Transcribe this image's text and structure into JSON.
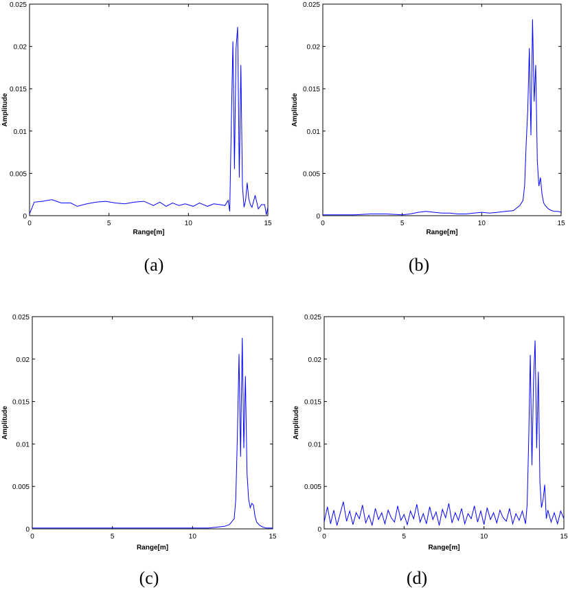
{
  "chart_data": [
    {
      "type": "line",
      "caption": "(a)",
      "xlabel": "Range[m]",
      "ylabel": "Amplitude",
      "xlim": [
        0,
        15
      ],
      "ylim": [
        0,
        0.025
      ],
      "xticks": [
        "0",
        "5",
        "10",
        "15"
      ],
      "yticks": [
        "0",
        "0.005",
        "0.01",
        "0.015",
        "0.02",
        "0.025"
      ],
      "series_color": "#0000ff",
      "series": [
        {
          "x": [
            0,
            0.3,
            0.8,
            1.4,
            2.0,
            2.6,
            3.0,
            3.6,
            4.2,
            4.8,
            5.4,
            6.0,
            6.6,
            7.2,
            7.8,
            8.2,
            8.6,
            9.0,
            9.4,
            9.8,
            10.3,
            10.7,
            11.2,
            11.6,
            12.0,
            12.3,
            12.5,
            12.6,
            12.7,
            12.8,
            12.9,
            13.0,
            13.1,
            13.2,
            13.3,
            13.4,
            13.5,
            13.6,
            13.7,
            13.8,
            13.9,
            14.0,
            14.2,
            14.4,
            14.6,
            14.8,
            14.9,
            15.0
          ],
          "y": [
            0.0002,
            0.0016,
            0.0017,
            0.0019,
            0.0015,
            0.0015,
            0.0011,
            0.0014,
            0.0016,
            0.0017,
            0.0015,
            0.0014,
            0.0016,
            0.0017,
            0.0012,
            0.0016,
            0.0011,
            0.0015,
            0.0012,
            0.0014,
            0.0011,
            0.0015,
            0.0011,
            0.0014,
            0.0013,
            0.0012,
            0.0018,
            0.0005,
            0.0109,
            0.0206,
            0.0055,
            0.0198,
            0.0223,
            0.0045,
            0.0178,
            0.0035,
            0.001,
            0.0018,
            0.0039,
            0.002,
            0.0013,
            0.001,
            0.0024,
            0.0008,
            0.0013,
            0.0013,
            0.0001,
            0.001
          ]
        }
      ]
    },
    {
      "type": "line",
      "caption": "(b)",
      "xlabel": "Range[m]",
      "ylabel": "Amplitude",
      "xlim": [
        0,
        15
      ],
      "ylim": [
        0,
        0.025
      ],
      "xticks": [
        "0",
        "5",
        "10",
        "15"
      ],
      "yticks": [
        "0",
        "0.005",
        "0.01",
        "0.015",
        "0.02",
        "0.025"
      ],
      "series_color": "#0000ff",
      "series": [
        {
          "x": [
            0,
            1,
            2,
            3,
            4,
            5,
            5.5,
            6,
            6.5,
            7,
            7.5,
            8,
            8.5,
            9,
            9.5,
            10,
            10.5,
            11,
            11.5,
            12,
            12.2,
            12.4,
            12.6,
            12.7,
            12.8,
            12.9,
            13.0,
            13.1,
            13.2,
            13.3,
            13.4,
            13.5,
            13.6,
            13.7,
            13.8,
            13.9,
            14.0,
            14.2,
            14.4,
            14.6,
            14.8,
            15.0
          ],
          "y": [
            0.0001,
            0.0001,
            0.0001,
            0.0002,
            0.0002,
            0.0001,
            0.0002,
            0.0004,
            0.0005,
            0.0004,
            0.0003,
            0.0003,
            0.0002,
            0.0002,
            0.0003,
            0.0004,
            0.0003,
            0.0004,
            0.0005,
            0.0006,
            0.0009,
            0.0012,
            0.0018,
            0.0035,
            0.0085,
            0.0125,
            0.0198,
            0.0095,
            0.0232,
            0.0135,
            0.0178,
            0.0065,
            0.0035,
            0.0045,
            0.0025,
            0.0015,
            0.0012,
            0.0008,
            0.0006,
            0.0005,
            0.0005,
            0.0004
          ]
        }
      ]
    },
    {
      "type": "line",
      "caption": "(c)",
      "xlabel": "Range[m]",
      "ylabel": "Amplitude",
      "xlim": [
        0,
        15
      ],
      "ylim": [
        0,
        0.025
      ],
      "xticks": [
        "0",
        "5",
        "10",
        "15"
      ],
      "yticks": [
        "0",
        "0.005",
        "0.01",
        "0.015",
        "0.02",
        "0.025"
      ],
      "series_color": "#0000ff",
      "series": [
        {
          "x": [
            0,
            1,
            2,
            3,
            4,
            5,
            6,
            7,
            8,
            9,
            10,
            11,
            11.5,
            12,
            12.3,
            12.6,
            12.7,
            12.8,
            12.9,
            13.0,
            13.1,
            13.2,
            13.3,
            13.4,
            13.5,
            13.6,
            13.7,
            13.8,
            13.9,
            14.0,
            14.2,
            14.4,
            14.6,
            14.8,
            15.0
          ],
          "y": [
            0.0001,
            0.0001,
            0.0001,
            0.0001,
            0.0001,
            0.0001,
            0.0001,
            0.0001,
            0.0001,
            0.0001,
            0.0001,
            0.0001,
            0.0002,
            0.0003,
            0.0005,
            0.0012,
            0.0035,
            0.0112,
            0.0206,
            0.0085,
            0.0225,
            0.0095,
            0.018,
            0.0065,
            0.0035,
            0.0025,
            0.003,
            0.0028,
            0.0015,
            0.0008,
            0.0004,
            0.0002,
            0.0001,
            0.0001,
            0.0001
          ]
        }
      ]
    },
    {
      "type": "line",
      "caption": "(d)",
      "xlabel": "Range[m]",
      "ylabel": "Amplitude",
      "xlim": [
        0,
        15
      ],
      "ylim": [
        0,
        0.025
      ],
      "xticks": [
        "0",
        "5",
        "10",
        "15"
      ],
      "yticks": [
        "0",
        "0.005",
        "0.01",
        "0.015",
        "0.02",
        "0.025"
      ],
      "series_color": "#0000ff",
      "series": [
        {
          "x": [
            0,
            0.2,
            0.4,
            0.6,
            0.8,
            1.0,
            1.2,
            1.4,
            1.6,
            1.8,
            2.0,
            2.2,
            2.4,
            2.6,
            2.8,
            3.0,
            3.2,
            3.4,
            3.6,
            3.8,
            4.0,
            4.2,
            4.4,
            4.6,
            4.8,
            5.0,
            5.2,
            5.4,
            5.6,
            5.8,
            6.0,
            6.2,
            6.4,
            6.6,
            6.8,
            7.0,
            7.2,
            7.4,
            7.6,
            7.8,
            8.0,
            8.2,
            8.4,
            8.6,
            8.8,
            9.0,
            9.2,
            9.4,
            9.6,
            9.8,
            10.0,
            10.2,
            10.4,
            10.6,
            10.8,
            11.0,
            11.2,
            11.4,
            11.6,
            11.8,
            12.0,
            12.2,
            12.4,
            12.6,
            12.7,
            12.8,
            12.9,
            13.0,
            13.1,
            13.2,
            13.3,
            13.4,
            13.5,
            13.6,
            13.7,
            13.8,
            13.9,
            14.0,
            14.2,
            14.4,
            14.6,
            14.8,
            15.0
          ],
          "y": [
            0.0008,
            0.0026,
            0.0006,
            0.0022,
            0.0004,
            0.0018,
            0.0032,
            0.0009,
            0.0021,
            0.0005,
            0.0019,
            0.0012,
            0.0028,
            0.0007,
            0.0016,
            0.0004,
            0.0024,
            0.0011,
            0.0019,
            0.0006,
            0.0022,
            0.0013,
            0.0008,
            0.0027,
            0.001,
            0.0017,
            0.0005,
            0.0021,
            0.0012,
            0.0029,
            0.0008,
            0.0018,
            0.0006,
            0.0026,
            0.0011,
            0.002,
            0.0004,
            0.0023,
            0.0013,
            0.003,
            0.0007,
            0.0019,
            0.001,
            0.0024,
            0.0006,
            0.0018,
            0.0012,
            0.0027,
            0.0008,
            0.0021,
            0.0005,
            0.0025,
            0.0011,
            0.0019,
            0.0007,
            0.0022,
            0.0013,
            0.0009,
            0.0024,
            0.0006,
            0.0018,
            0.001,
            0.0021,
            0.0006,
            0.0028,
            0.0105,
            0.0205,
            0.0075,
            0.0175,
            0.0222,
            0.0095,
            0.0185,
            0.0055,
            0.0025,
            0.0035,
            0.0052,
            0.0012,
            0.0022,
            0.0008,
            0.0019,
            0.0006,
            0.0021,
            0.0012
          ]
        }
      ]
    }
  ]
}
